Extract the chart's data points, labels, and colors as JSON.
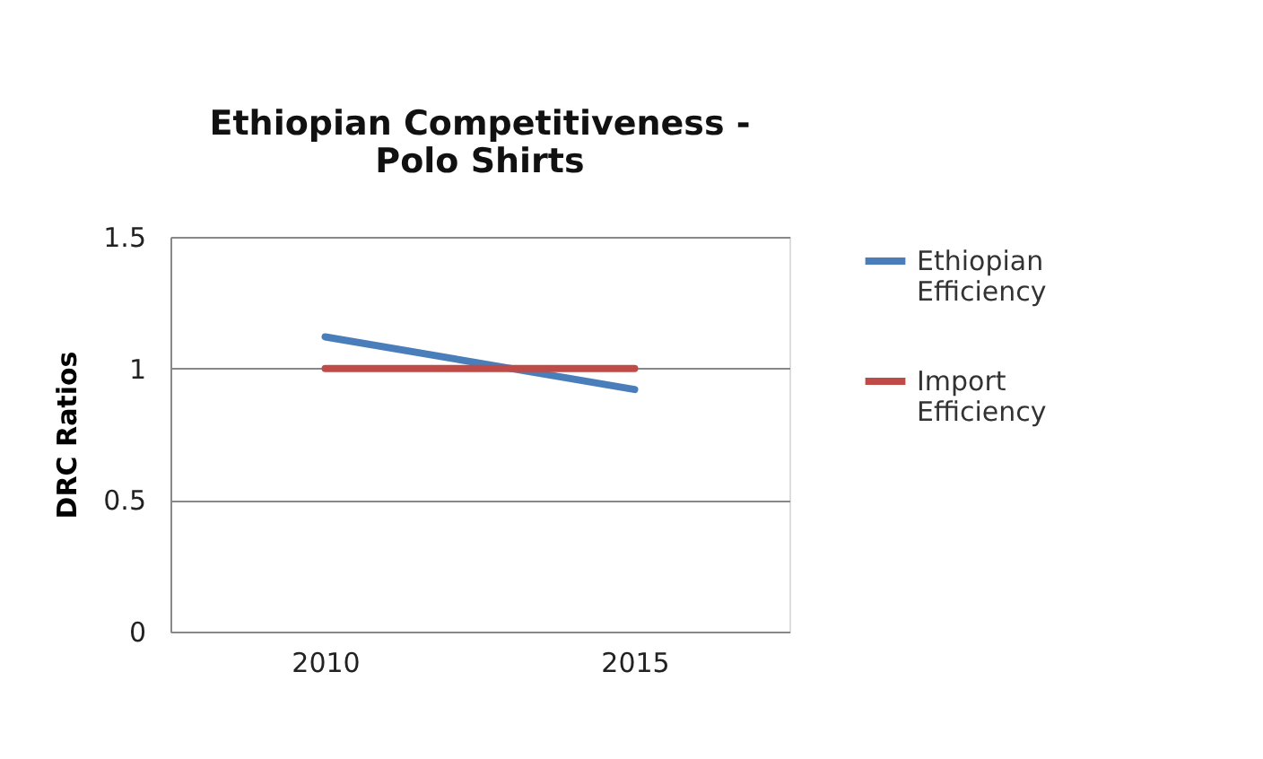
{
  "chart_data": {
    "type": "line",
    "title": "Ethiopian Competitiveness - Polo Shirts",
    "ylabel": "DRC Ratios",
    "categories": [
      "2010",
      "2015"
    ],
    "series": [
      {
        "name": "Ethiopian Efficiency",
        "color": "#4a7ebb",
        "values": [
          1.12,
          0.92
        ]
      },
      {
        "name": "Import Efficiency",
        "color": "#be4b48",
        "values": [
          1.0,
          1.0
        ]
      }
    ],
    "ylim": [
      0,
      1.5
    ],
    "yticks": [
      0,
      0.5,
      1,
      1.5
    ],
    "grid": "y",
    "legend": "right",
    "marker": "none",
    "line_style": "solid"
  }
}
